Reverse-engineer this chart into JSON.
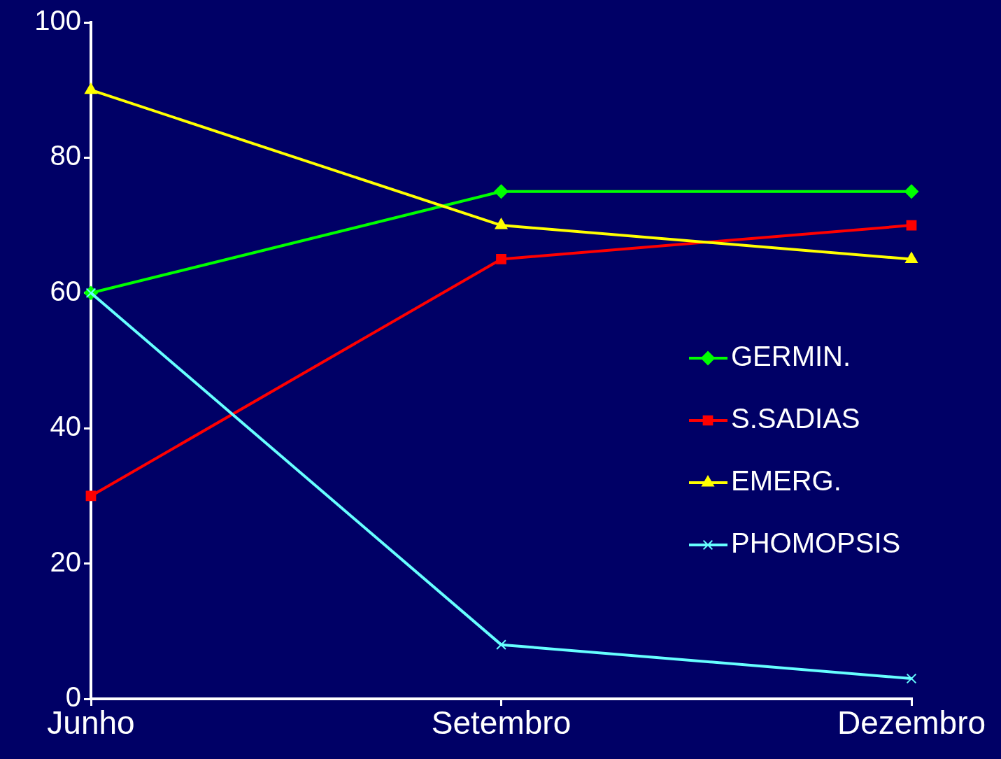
{
  "chart_data": {
    "type": "line",
    "categories": [
      "Junho",
      "Setembro",
      "Dezembro"
    ],
    "series": [
      {
        "name": "GERMIN.",
        "color": "#00ff00",
        "values": [
          60,
          75,
          75
        ],
        "marker": "diamond"
      },
      {
        "name": "S.SADIAS",
        "color": "#ff0000",
        "values": [
          30,
          65,
          70
        ],
        "marker": "square"
      },
      {
        "name": "EMERG.",
        "color": "#ffff00",
        "values": [
          90,
          70,
          65
        ],
        "marker": "triangle"
      },
      {
        "name": "PHOMOPSIS",
        "color": "#66ffff",
        "values": [
          60,
          8,
          3
        ],
        "marker": "cross"
      }
    ],
    "ylim": [
      0,
      100
    ],
    "yticks": [
      0,
      20,
      40,
      60,
      80,
      100
    ],
    "grid": false,
    "legend": "right",
    "line_style": "solid"
  }
}
